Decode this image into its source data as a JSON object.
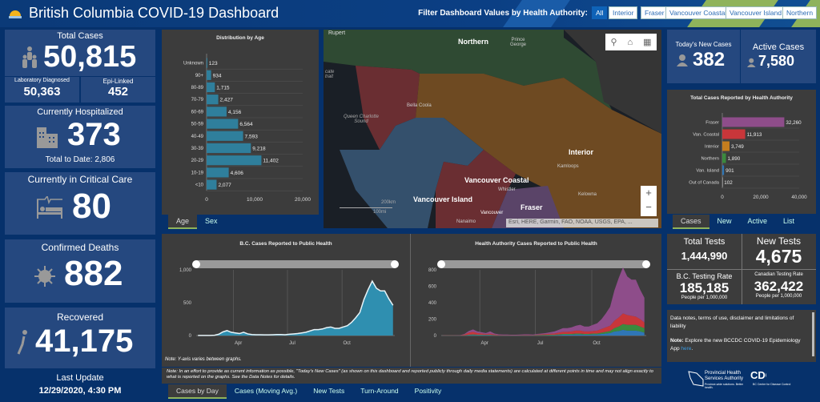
{
  "header": {
    "title": "British Columbia COVID-19 Dashboard",
    "filter_label": "Filter Dashboard Values by Health Authority:",
    "filters": [
      "All",
      "Interior",
      "Fraser",
      "Vancouver Coastal",
      "Vancouver Island",
      "Northern"
    ],
    "selected_filter": "All"
  },
  "left": {
    "total_cases": {
      "label": "Total Cases",
      "value": "50,815",
      "lab_label": "Laboratory Diagnosed",
      "lab_value": "50,363",
      "epi_label": "Epi-Linked",
      "epi_value": "452"
    },
    "hospitalized": {
      "label": "Currently Hospitalized",
      "value": "373",
      "sub": "Total to Date: 2,806"
    },
    "critical": {
      "label": "Currently in Critical Care",
      "value": "80"
    },
    "deaths": {
      "label": "Confirmed Deaths",
      "value": "882"
    },
    "recovered": {
      "label": "Recovered",
      "value": "41,175"
    },
    "last_update": {
      "label": "Last Update",
      "value": "12/29/2020, 4:30 PM"
    }
  },
  "age_tabs": [
    "Age",
    "Sex"
  ],
  "map": {
    "labels": [
      "Northern",
      "Prince George",
      "Bella Coola",
      "Queen Charlotte Sound",
      "Interior",
      "Kamloops",
      "Kelowna",
      "Vancouver Coastal",
      "Whistler",
      "Vancouver Island",
      "Fraser",
      "Nanaimo",
      "Vancouver",
      "Rupert",
      "cate trait"
    ],
    "scale_km": "200km",
    "scale_mi": "100mi",
    "attribution": "Esri, HERE, Garmin, FAO, NOAA, USGS, EPA, ..."
  },
  "right": {
    "new_cases": {
      "label": "Today's New Cases",
      "value": "382"
    },
    "active": {
      "label": "Active Cases",
      "value": "7,580"
    },
    "ha_tabs": [
      "Cases",
      "New",
      "Active",
      "List"
    ],
    "tests": {
      "total_label": "Total Tests",
      "total_value": "1,444,990",
      "new_label": "New Tests",
      "new_value": "4,675",
      "bc_label": "B.C. Testing Rate",
      "bc_value": "185,185",
      "bc_sub": "People per 1,000,000",
      "ca_label": "Canadian Testing Rate",
      "ca_value": "362,422",
      "ca_sub": "People per 1,000,000"
    },
    "notes": {
      "line1": "Data notes, terms of use, disclaimer and limitations of liability",
      "note_bold": "Note:",
      "note_text": " Explore the new BCCDC COVID-19 Epidemiology App ",
      "link": "here",
      "end": "."
    },
    "logos": {
      "phsa": "Provincial Health Services Authority",
      "phsa_sub": "Province-wide solutions. Better health.",
      "bccdc": "BC Centre for Disease Control"
    }
  },
  "bottom": {
    "yaxis_note": "Note: Y-axis varies between graphs.",
    "disclaimer": "Note: In an effort to provide as current information as possible, \"Today's New Cases\" (as shown on this dashboard and reported publicly through daily media statements) are calculated at different points in time and may not align exactly to what is reported on the graphs. See the Data Notes for details.",
    "tabs": [
      "Cases by Day",
      "Cases (Moving Avg.)",
      "New Tests",
      "Turn-Around",
      "Positivity"
    ]
  },
  "chart_data": [
    {
      "type": "bar",
      "title": "Distribution by Age",
      "categories": [
        "Unknown",
        "90+",
        "80-89",
        "70-79",
        "60-69",
        "50-59",
        "40-49",
        "30-39",
        "20-29",
        "10-19",
        "<10"
      ],
      "values": [
        123,
        934,
        1715,
        2427,
        4156,
        6564,
        7593,
        9218,
        11402,
        4606,
        2077
      ],
      "labels": [
        "123",
        "934",
        "1,715",
        "2,427",
        "4,156",
        "6,564",
        "7,593",
        "9,218",
        "11,402",
        "4,606",
        "2,077"
      ],
      "xlim": [
        0,
        20000
      ],
      "ticks": [
        "0",
        "10,000",
        "20,000"
      ],
      "color": "#2f7f9c"
    },
    {
      "type": "bar",
      "title": "Total Cases Reported by Health Authority",
      "categories": [
        "Fraser",
        "Van. Coastal",
        "Interior",
        "Northern",
        "Van. Island",
        "Out of Canada"
      ],
      "values": [
        32260,
        11913,
        3749,
        1890,
        901,
        102
      ],
      "labels": [
        "32,260",
        "11,913",
        "3,749",
        "1,890",
        "901",
        "102"
      ],
      "colors": [
        "#8e4d8a",
        "#c8363a",
        "#c47d1e",
        "#3b8a3e",
        "#2f76b6",
        "#888888"
      ],
      "xlim": [
        0,
        40000
      ],
      "ticks": [
        "0",
        "20,000",
        "40,000"
      ]
    },
    {
      "type": "area",
      "title": "B.C. Cases Reported to Public Health",
      "x": [
        "2020-02-01",
        "2020-02-08",
        "2020-02-15",
        "2020-02-22",
        "2020-02-29",
        "2020-03-07",
        "2020-03-14",
        "2020-03-21",
        "2020-03-28",
        "2020-04-04",
        "2020-04-11",
        "2020-04-18",
        "2020-04-25",
        "2020-05-02",
        "2020-05-09",
        "2020-05-16",
        "2020-05-23",
        "2020-05-30",
        "2020-06-06",
        "2020-06-13",
        "2020-06-20",
        "2020-06-27",
        "2020-07-04",
        "2020-07-11",
        "2020-07-18",
        "2020-07-25",
        "2020-08-01",
        "2020-08-08",
        "2020-08-15",
        "2020-08-22",
        "2020-08-29",
        "2020-09-05",
        "2020-09-12",
        "2020-09-19",
        "2020-09-26",
        "2020-10-03",
        "2020-10-10",
        "2020-10-17",
        "2020-10-24",
        "2020-10-31",
        "2020-11-07",
        "2020-11-14",
        "2020-11-21",
        "2020-11-28",
        "2020-12-05",
        "2020-12-12",
        "2020-12-19",
        "2020-12-26"
      ],
      "values": [
        2,
        1,
        1,
        2,
        5,
        20,
        55,
        75,
        50,
        40,
        30,
        50,
        25,
        15,
        12,
        12,
        10,
        10,
        12,
        15,
        15,
        12,
        20,
        25,
        30,
        40,
        50,
        70,
        90,
        90,
        100,
        120,
        130,
        110,
        110,
        130,
        150,
        200,
        270,
        350,
        550,
        700,
        830,
        720,
        680,
        680,
        560,
        460
      ],
      "ylim": [
        0,
        1000
      ],
      "yticks": [
        "0",
        "500",
        "1,000"
      ],
      "xticks": [
        "Apr",
        "Jul",
        "Oct"
      ],
      "color": "#2f8fb0",
      "line_color": "#e8f4f8"
    },
    {
      "type": "area",
      "stacked": true,
      "title": "Health Authority Cases Reported to Public Health",
      "ylim": [
        0,
        800
      ],
      "yticks": [
        "0",
        "200",
        "400",
        "600",
        "800"
      ],
      "xticks": [
        "Apr",
        "Jul",
        "Oct"
      ],
      "series": [
        {
          "color": "#2f76b6",
          "values": [
            0,
            0,
            0,
            0,
            0,
            2,
            5,
            7,
            5,
            5,
            5,
            5,
            3,
            2,
            2,
            2,
            2,
            2,
            2,
            2,
            2,
            2,
            3,
            3,
            3,
            4,
            4,
            7,
            10,
            10,
            10,
            13,
            13,
            10,
            10,
            13,
            13,
            20,
            25,
            30,
            50,
            55,
            70,
            60,
            60,
            60,
            50,
            35
          ]
        },
        {
          "color": "#3b8a3e",
          "values": [
            0,
            0,
            0,
            0,
            1,
            2,
            5,
            8,
            5,
            5,
            3,
            5,
            2,
            1,
            1,
            1,
            1,
            1,
            1,
            1,
            1,
            1,
            3,
            4,
            5,
            6,
            6,
            8,
            10,
            10,
            10,
            12,
            12,
            10,
            10,
            12,
            12,
            15,
            20,
            25,
            40,
            55,
            70,
            70,
            70,
            70,
            60,
            55
          ]
        },
        {
          "color": "#c8363a",
          "values": [
            1,
            1,
            1,
            1,
            2,
            10,
            25,
            30,
            20,
            15,
            10,
            15,
            8,
            4,
            3,
            3,
            2,
            2,
            3,
            4,
            4,
            3,
            6,
            8,
            10,
            12,
            15,
            20,
            25,
            25,
            30,
            35,
            35,
            30,
            30,
            30,
            35,
            45,
            55,
            65,
            90,
            110,
            130,
            120,
            110,
            100,
            90,
            70
          ]
        },
        {
          "color": "#8e4d8a",
          "values": [
            1,
            0,
            0,
            1,
            2,
            6,
            20,
            30,
            20,
            15,
            12,
            25,
            12,
            8,
            6,
            6,
            5,
            5,
            6,
            8,
            8,
            6,
            8,
            10,
            12,
            18,
            25,
            35,
            45,
            45,
            50,
            60,
            70,
            60,
            60,
            75,
            90,
            120,
            170,
            230,
            370,
            480,
            560,
            470,
            440,
            450,
            360,
            300
          ]
        }
      ]
    }
  ]
}
